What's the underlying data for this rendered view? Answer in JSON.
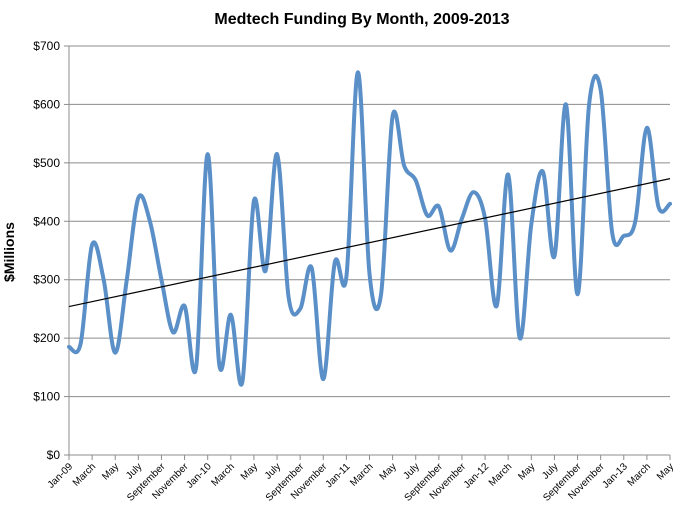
{
  "chart_data": {
    "type": "line",
    "title": "Medtech Funding By Month, 2009-2013",
    "xlabel": "",
    "ylabel": "$Millions",
    "ylim": [
      0,
      700
    ],
    "yticks": [
      0,
      100,
      200,
      300,
      400,
      500,
      600,
      700
    ],
    "ytick_labels": [
      "$0",
      "$100",
      "$200",
      "$300",
      "$400",
      "$500",
      "$600",
      "$700"
    ],
    "grid": "horizontal",
    "smoothed": true,
    "colors": {
      "series": "#5b8fc7",
      "trendline": "#000000",
      "grid": "#8c8c8c"
    },
    "categories": [
      "Jan-09",
      "Feb-09",
      "Mar-09",
      "Apr-09",
      "May-09",
      "Jun-09",
      "Jul-09",
      "Aug-09",
      "Sep-09",
      "Oct-09",
      "Nov-09",
      "Dec-09",
      "Jan-10",
      "Feb-10",
      "Mar-10",
      "Apr-10",
      "May-10",
      "Jun-10",
      "Jul-10",
      "Aug-10",
      "Sep-10",
      "Oct-10",
      "Nov-10",
      "Dec-10",
      "Jan-11",
      "Feb-11",
      "Mar-11",
      "Apr-11",
      "May-11",
      "Jun-11",
      "Jul-11",
      "Aug-11",
      "Sep-11",
      "Oct-11",
      "Nov-11",
      "Dec-11",
      "Jan-12",
      "Feb-12",
      "Mar-12",
      "Apr-12",
      "May-12",
      "Jun-12",
      "Jul-12",
      "Aug-12",
      "Sep-12",
      "Oct-12",
      "Nov-12",
      "Dec-12",
      "Jan-13",
      "Feb-13",
      "Mar-13",
      "Apr-13",
      "May-13"
    ],
    "tick_labels": [
      "Jan-09",
      "March",
      "May",
      "July",
      "September",
      "November",
      "Jan-10",
      "March",
      "May",
      "July",
      "September",
      "November",
      "Jan-11",
      "March",
      "May",
      "July",
      "September",
      "November",
      "Jan-12",
      "March",
      "May",
      "July",
      "September",
      "November",
      "Jan-13",
      "March",
      "May"
    ],
    "series": [
      {
        "values": [
          185,
          190,
          360,
          300,
          175,
          300,
          440,
          400,
          300,
          210,
          255,
          150,
          515,
          155,
          240,
          125,
          435,
          315,
          515,
          270,
          250,
          320,
          130,
          330,
          305,
          655,
          310,
          275,
          580,
          495,
          470,
          410,
          425,
          350,
          405,
          450,
          405,
          255,
          480,
          200,
          395,
          485,
          340,
          600,
          275,
          600,
          625,
          380,
          375,
          400,
          560,
          425,
          430
        ]
      }
    ],
    "trendline": {
      "type": "linear",
      "start": 254,
      "end": 473
    }
  }
}
